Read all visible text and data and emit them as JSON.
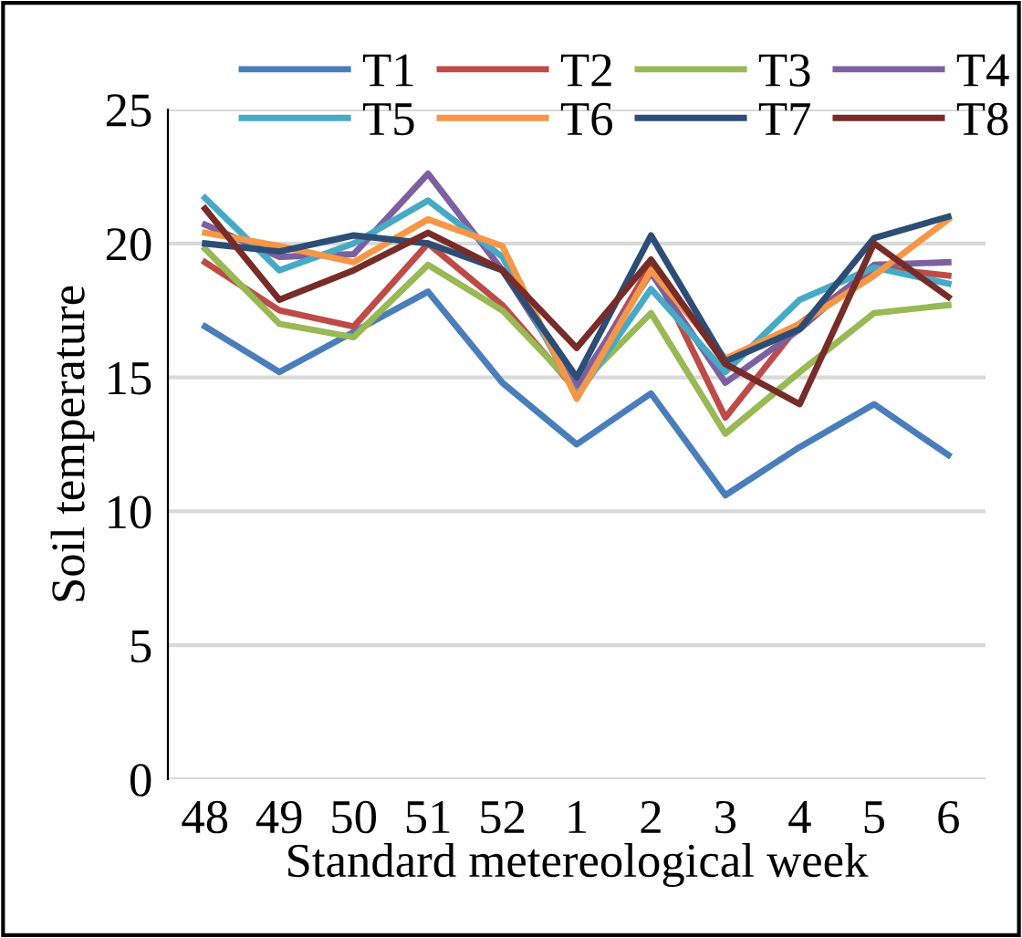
{
  "chart_data": {
    "type": "line",
    "xlabel": "Standard metereological week",
    "ylabel": "Soil temperature",
    "categories": [
      "48",
      "49",
      "50",
      "51",
      "52",
      "1",
      "2",
      "3",
      "4",
      "5",
      "6"
    ],
    "ylim": [
      0,
      25
    ],
    "yticks": [
      0,
      5,
      10,
      15,
      20,
      25
    ],
    "grid": "y",
    "legend": "top",
    "marker": "none",
    "line_style": "solid",
    "series": [
      {
        "name": "T1",
        "color": "#4a7ebb",
        "values": [
          16.9,
          15.2,
          16.7,
          18.2,
          14.8,
          12.5,
          14.4,
          10.6,
          12.4,
          14.0,
          12.1
        ]
      },
      {
        "name": "T2",
        "color": "#be4b48",
        "values": [
          19.3,
          17.5,
          16.9,
          20.0,
          17.7,
          14.5,
          19.2,
          13.5,
          17.0,
          19.1,
          18.8
        ]
      },
      {
        "name": "T3",
        "color": "#98b954",
        "values": [
          19.8,
          17.0,
          16.5,
          19.2,
          17.5,
          14.6,
          17.4,
          12.9,
          15.2,
          17.4,
          17.7
        ]
      },
      {
        "name": "T4",
        "color": "#7d60a0",
        "values": [
          20.7,
          19.5,
          19.6,
          22.6,
          19.0,
          14.7,
          18.9,
          14.8,
          16.8,
          19.2,
          19.3
        ]
      },
      {
        "name": "T5",
        "color": "#46aac5",
        "values": [
          21.7,
          19.0,
          20.0,
          21.6,
          19.5,
          14.3,
          18.3,
          15.2,
          17.9,
          19.1,
          18.5
        ]
      },
      {
        "name": "T6",
        "color": "#f79646",
        "values": [
          20.4,
          19.9,
          19.3,
          20.9,
          19.9,
          14.2,
          19.0,
          15.7,
          17.0,
          18.8,
          20.9
        ]
      },
      {
        "name": "T7",
        "color": "#2c4d75",
        "values": [
          20.0,
          19.7,
          20.3,
          20.0,
          19.0,
          15.0,
          20.3,
          15.6,
          16.8,
          20.2,
          21.0
        ]
      },
      {
        "name": "T8",
        "color": "#772c2a",
        "values": [
          21.3,
          17.9,
          19.0,
          20.4,
          19.0,
          16.1,
          19.4,
          15.5,
          14.0,
          20.0,
          18.0
        ]
      }
    ]
  }
}
